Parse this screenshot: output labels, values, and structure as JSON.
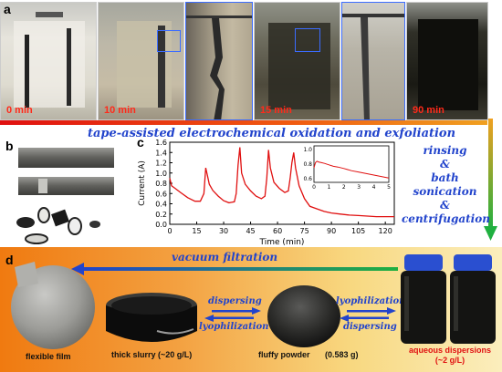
{
  "panel_labels": {
    "a": "a",
    "b": "b",
    "c": "c",
    "d": "d"
  },
  "photos": [
    {
      "time": "0 min"
    },
    {
      "time": "10 min"
    },
    {
      "time": ""
    },
    {
      "time": "15 min"
    },
    {
      "time": ""
    },
    {
      "time": "90 min"
    }
  ],
  "process": {
    "main": "tape-assisted electrochemical oxidation and exfoliation",
    "side_lines": [
      "rinsing",
      "&",
      "bath sonication",
      "&",
      "centrifugation"
    ],
    "vacuum": "vacuum filtration"
  },
  "bottom": {
    "film": "flexible film",
    "slurry": "thick slurry (~20 g/L)",
    "powder": "fluffy powder",
    "powder_mass": "(0.583 g)",
    "dispersion_line1": "aqueous dispersions",
    "dispersion_line2": "(~2 g/L)",
    "arrow1_top": "dispersing",
    "arrow1_bottom": "lyophilization",
    "arrow2_top": "lyophilization",
    "arrow2_bottom": "dispersing"
  },
  "colors": {
    "accent_blue": "#2244cc",
    "trace_red": "#e01010",
    "label_red": "#ff2a1a"
  },
  "chart_data": {
    "type": "line",
    "main": {
      "xlabel": "Time (min)",
      "ylabel": "Current (A)",
      "xlim": [
        0,
        125
      ],
      "ylim": [
        0.0,
        1.6
      ],
      "xticks": [
        0,
        15,
        30,
        45,
        60,
        75,
        90,
        105,
        120
      ],
      "yticks": [
        0.0,
        0.2,
        0.4,
        0.6,
        0.8,
        1.0,
        1.2,
        1.4,
        1.6
      ],
      "series": [
        {
          "x": [
            0,
            1,
            3,
            6,
            10,
            14,
            17,
            19,
            20,
            21,
            22,
            24,
            27,
            30,
            33,
            36,
            37,
            38,
            39,
            40,
            42,
            45,
            48,
            51,
            53,
            54,
            55,
            56,
            58,
            61,
            64,
            66,
            67,
            68,
            69,
            70,
            72,
            75,
            78,
            82,
            86,
            90,
            95,
            100,
            105,
            110,
            115,
            120,
            125
          ],
          "y": [
            0.9,
            0.75,
            0.7,
            0.62,
            0.52,
            0.45,
            0.45,
            0.6,
            1.1,
            0.95,
            0.78,
            0.66,
            0.55,
            0.46,
            0.42,
            0.44,
            0.6,
            1.15,
            1.5,
            1.0,
            0.78,
            0.65,
            0.55,
            0.5,
            0.55,
            0.9,
            1.45,
            1.1,
            0.82,
            0.7,
            0.62,
            0.65,
            0.9,
            1.2,
            1.4,
            1.1,
            0.75,
            0.5,
            0.35,
            0.3,
            0.25,
            0.22,
            0.2,
            0.18,
            0.17,
            0.16,
            0.15,
            0.15,
            0.15
          ]
        }
      ]
    },
    "inset": {
      "xlim": [
        0,
        5
      ],
      "ylim": [
        0.55,
        1.05
      ],
      "xticks": [
        0,
        1,
        2,
        3,
        4,
        5
      ],
      "yticks": [
        0.6,
        0.8,
        1.0
      ],
      "series": [
        {
          "x": [
            0,
            0.1,
            0.2,
            0.3,
            0.5,
            0.7,
            1.0,
            1.3,
            1.6,
            2.0,
            2.5,
            3.0,
            3.5,
            4.0,
            4.5,
            5.0
          ],
          "y": [
            0.75,
            0.82,
            0.84,
            0.83,
            0.82,
            0.81,
            0.79,
            0.77,
            0.76,
            0.74,
            0.71,
            0.69,
            0.67,
            0.65,
            0.63,
            0.61
          ]
        }
      ]
    }
  }
}
